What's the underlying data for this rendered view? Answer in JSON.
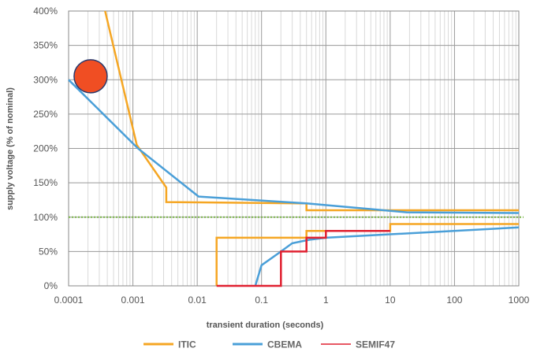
{
  "chart_data": {
    "type": "line",
    "xlabel": "transient duration (seconds)",
    "ylabel": "supply voltage (% of nominal)",
    "x_scale": "log",
    "xlim": [
      0.0001,
      1000
    ],
    "ylim": [
      0,
      400
    ],
    "x_ticks": [
      {
        "value": 0.0001,
        "label": "0.0001"
      },
      {
        "value": 0.001,
        "label": "0.001"
      },
      {
        "value": 0.01,
        "label": "0.01"
      },
      {
        "value": 0.1,
        "label": "0.1"
      },
      {
        "value": 1,
        "label": "1"
      },
      {
        "value": 10,
        "label": "10"
      },
      {
        "value": 100,
        "label": "100"
      },
      {
        "value": 1000,
        "label": "1000"
      }
    ],
    "y_ticks": [
      {
        "value": 0,
        "label": "0%"
      },
      {
        "value": 50,
        "label": "50%"
      },
      {
        "value": 100,
        "label": "100%"
      },
      {
        "value": 150,
        "label": "150%"
      },
      {
        "value": 200,
        "label": "200%"
      },
      {
        "value": 250,
        "label": "250%"
      },
      {
        "value": 300,
        "label": "300%"
      },
      {
        "value": 350,
        "label": "350%"
      },
      {
        "value": 400,
        "label": "400%"
      }
    ],
    "grid": true,
    "legend_position": "bottom",
    "reference_line": {
      "y": 100,
      "color": "#7ab648",
      "style": "dotted"
    },
    "marker": {
      "x": 0.00022,
      "y": 305,
      "color": "#f04e23",
      "stroke": "#2a3a6e"
    },
    "series": [
      {
        "name": "ITIC",
        "color": "#f5a623",
        "segments": [
          [
            [
              0.00037,
              400
            ],
            [
              0.00115,
              205
            ],
            [
              0.0033,
              143
            ],
            [
              0.0033,
              122
            ],
            [
              0.5,
              120
            ],
            [
              0.5,
              110
            ],
            [
              1000,
              110
            ]
          ],
          [
            [
              0.02,
              0
            ],
            [
              0.02,
              70
            ],
            [
              0.5,
              70
            ],
            [
              0.5,
              80
            ],
            [
              10,
              80
            ],
            [
              10,
              90
            ],
            [
              1000,
              90
            ]
          ]
        ]
      },
      {
        "name": "CBEMA",
        "color": "#4a9fd8",
        "segments": [
          [
            [
              0.0001,
              300
            ],
            [
              0.0012,
              200
            ],
            [
              0.0105,
              130
            ],
            [
              0.5,
              120
            ],
            [
              18,
              107
            ],
            [
              1000,
              106
            ]
          ],
          [
            [
              0.08,
              0
            ],
            [
              0.1,
              30
            ],
            [
              0.2,
              50
            ],
            [
              0.3,
              62
            ],
            [
              0.55,
              67
            ],
            [
              1,
              70
            ],
            [
              1000,
              85
            ]
          ]
        ]
      },
      {
        "name": "SEMIF47",
        "color": "#e02030",
        "segments": [
          [
            [
              0.02,
              0
            ],
            [
              0.2,
              0
            ],
            [
              0.2,
              50
            ],
            [
              0.5,
              50
            ],
            [
              0.5,
              70
            ],
            [
              1,
              70
            ],
            [
              1,
              80
            ],
            [
              10,
              80
            ]
          ]
        ]
      }
    ]
  }
}
